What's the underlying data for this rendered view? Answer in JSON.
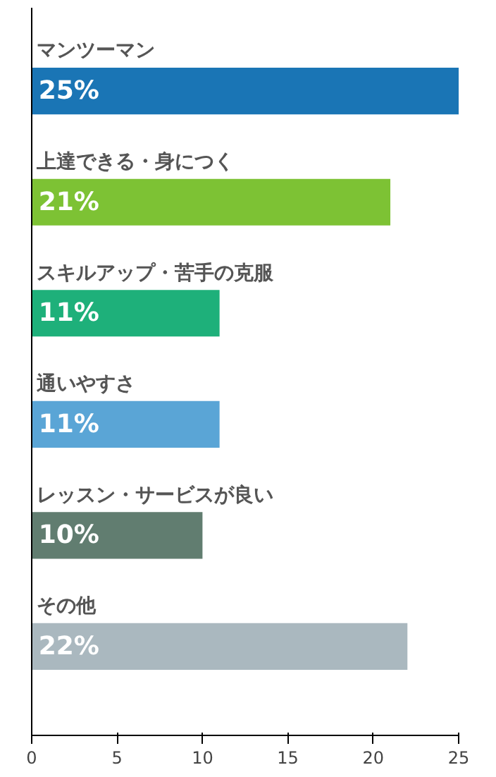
{
  "chart_data": {
    "type": "bar",
    "orientation": "horizontal",
    "categories": [
      "マンツーマン",
      "上達できる・身につく",
      "スキルアップ・苦手の克服",
      "通いやすさ",
      "レッスン・サービスが良い",
      "その他"
    ],
    "values": [
      25,
      21,
      11,
      11,
      10,
      22
    ],
    "colors": [
      "#1a75b5",
      "#7dc234",
      "#1eb07a",
      "#5aa5d6",
      "#617d70",
      "#aab8bf"
    ],
    "value_labels": [
      "25%",
      "21%",
      "11%",
      "11%",
      "10%",
      "22%"
    ],
    "xlim": [
      0,
      25
    ],
    "xticks": [
      0,
      5,
      10,
      15,
      20,
      25
    ],
    "tick_labels": "x",
    "grid": false
  }
}
